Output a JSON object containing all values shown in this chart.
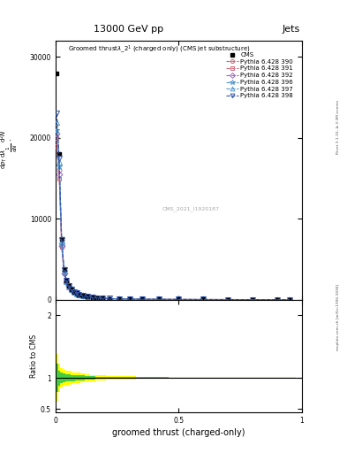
{
  "title_top": "13000 GeV pp",
  "title_right": "Jets",
  "xlabel": "groomed thrust (charged-only)",
  "ylabel_ratio": "Ratio to CMS",
  "watermark": "CMS_2021_I1920187",
  "right_label_top": "Rivet 3.1.10, ≥ 3.3M events",
  "right_label_bot": "mcplots.cern.ch [arXiv:1306.3436]",
  "cms_label": "CMS",
  "pythia_labels": [
    "Pythia 6.428 390",
    "Pythia 6.428 391",
    "Pythia 6.428 392",
    "Pythia 6.428 396",
    "Pythia 6.428 397",
    "Pythia 6.428 398"
  ],
  "x_data": [
    0.005,
    0.015,
    0.025,
    0.035,
    0.045,
    0.055,
    0.065,
    0.075,
    0.085,
    0.095,
    0.11,
    0.13,
    0.15,
    0.17,
    0.19,
    0.22,
    0.26,
    0.3,
    0.35,
    0.42,
    0.5,
    0.6,
    0.7,
    0.8,
    0.9,
    0.95
  ],
  "cms_y": [
    28000,
    18000,
    7500,
    3800,
    2400,
    1700,
    1300,
    1000,
    800,
    650,
    500,
    360,
    270,
    210,
    168,
    130,
    100,
    78,
    60,
    44,
    32,
    23,
    18,
    14,
    12,
    11
  ],
  "pythia_390_y": [
    20000,
    16000,
    6800,
    3400,
    2200,
    1600,
    1220,
    940,
    760,
    630,
    490,
    350,
    265,
    205,
    164,
    127,
    97,
    76,
    59,
    43,
    31,
    23,
    17,
    14,
    11,
    10
  ],
  "pythia_391_y": [
    19000,
    15000,
    6500,
    3200,
    2100,
    1550,
    1180,
    915,
    740,
    615,
    478,
    343,
    260,
    201,
    161,
    125,
    95,
    75,
    58,
    42,
    31,
    22,
    17,
    13,
    11,
    10
  ],
  "pythia_392_y": [
    20500,
    15500,
    6600,
    3300,
    2150,
    1570,
    1200,
    925,
    750,
    620,
    483,
    346,
    262,
    203,
    162,
    126,
    96,
    75,
    58,
    43,
    31,
    23,
    17,
    14,
    11,
    10
  ],
  "pythia_396_y": [
    21000,
    16500,
    7000,
    3500,
    2250,
    1630,
    1250,
    960,
    775,
    640,
    498,
    356,
    269,
    208,
    166,
    129,
    98,
    77,
    60,
    44,
    32,
    23,
    18,
    14,
    11,
    10
  ],
  "pythia_397_y": [
    22000,
    17000,
    7200,
    3600,
    2300,
    1660,
    1260,
    970,
    780,
    645,
    500,
    358,
    271,
    209,
    167,
    130,
    99,
    77,
    60,
    44,
    32,
    23,
    18,
    14,
    11,
    10
  ],
  "pythia_398_y": [
    23000,
    17500,
    7400,
    3700,
    2350,
    1690,
    1280,
    980,
    790,
    652,
    505,
    362,
    274,
    212,
    169,
    131,
    100,
    78,
    61,
    44,
    32,
    24,
    18,
    14,
    12,
    10
  ],
  "cms_color": "#000000",
  "pythia_colors": [
    "#cc6677",
    "#cc6677",
    "#9966bb",
    "#5599cc",
    "#5599cc",
    "#3355aa"
  ],
  "ratio_yellow_band_lo": [
    0.62,
    0.78,
    0.84,
    0.87,
    0.88,
    0.89,
    0.9,
    0.91,
    0.92,
    0.92,
    0.93,
    0.94,
    0.95,
    0.96,
    0.96,
    0.97,
    0.97,
    0.97,
    0.98,
    0.98,
    0.99,
    0.99,
    0.99,
    0.99,
    1.0,
    1.0
  ],
  "ratio_yellow_band_hi": [
    1.38,
    1.22,
    1.16,
    1.13,
    1.12,
    1.11,
    1.1,
    1.09,
    1.08,
    1.08,
    1.07,
    1.06,
    1.05,
    1.04,
    1.04,
    1.03,
    1.03,
    1.03,
    1.02,
    1.02,
    1.01,
    1.01,
    1.01,
    1.01,
    1.01,
    1.01
  ],
  "ratio_green_band_lo": [
    0.78,
    0.88,
    0.91,
    0.93,
    0.94,
    0.94,
    0.95,
    0.95,
    0.96,
    0.96,
    0.96,
    0.97,
    0.97,
    0.98,
    0.98,
    0.98,
    0.98,
    0.99,
    0.99,
    0.99,
    0.995,
    0.995,
    0.995,
    0.995,
    0.995,
    0.995
  ],
  "ratio_green_band_hi": [
    1.22,
    1.12,
    1.09,
    1.07,
    1.06,
    1.06,
    1.05,
    1.05,
    1.04,
    1.04,
    1.04,
    1.03,
    1.03,
    1.02,
    1.02,
    1.02,
    1.02,
    1.01,
    1.01,
    1.01,
    1.005,
    1.005,
    1.005,
    1.005,
    1.005,
    1.005
  ],
  "ylim_main": [
    0,
    32000
  ],
  "ylim_ratio": [
    0.45,
    2.25
  ],
  "xlim": [
    0.0,
    1.0
  ],
  "yticks_main": [
    0,
    10000,
    20000,
    30000
  ],
  "ytick_labels_main": [
    "0",
    "10000",
    "20000",
    "30000"
  ],
  "yticks_ratio": [
    0.5,
    1.0,
    2.0
  ],
  "background_color": "#ffffff"
}
